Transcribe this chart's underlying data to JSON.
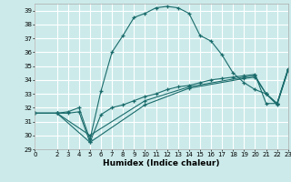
{
  "xlabel": "Humidex (Indice chaleur)",
  "bg_color": "#cceaea",
  "grid_color": "#ffffff",
  "line_color": "#1a6b6b",
  "marker": "+",
  "xlim": [
    0,
    23
  ],
  "ylim": [
    29,
    39.5
  ],
  "yticks": [
    29,
    30,
    31,
    32,
    33,
    34,
    35,
    36,
    37,
    38,
    39
  ],
  "xticks": [
    0,
    2,
    3,
    4,
    5,
    6,
    7,
    8,
    9,
    10,
    11,
    12,
    13,
    14,
    15,
    16,
    17,
    18,
    19,
    20,
    21,
    22,
    23
  ],
  "series": [
    {
      "x": [
        0,
        2,
        3,
        4,
        5,
        6,
        7,
        8,
        9,
        10,
        11,
        12,
        13,
        14,
        15,
        16,
        17,
        18,
        19,
        20,
        21,
        22,
        23
      ],
      "y": [
        31.6,
        31.6,
        31.7,
        32.0,
        29.7,
        33.2,
        36.0,
        37.2,
        38.5,
        38.8,
        39.2,
        39.3,
        39.2,
        38.8,
        37.2,
        36.8,
        35.8,
        34.5,
        33.8,
        33.3,
        33.0,
        32.3,
        34.8
      ]
    },
    {
      "x": [
        0,
        2,
        3,
        4,
        5,
        6,
        7,
        8,
        9,
        10,
        11,
        12,
        13,
        14,
        15,
        16,
        17,
        18,
        19,
        20,
        21,
        22,
        23
      ],
      "y": [
        31.6,
        31.6,
        31.6,
        31.7,
        29.5,
        31.5,
        32.0,
        32.2,
        32.5,
        32.8,
        33.0,
        33.3,
        33.5,
        33.6,
        33.8,
        34.0,
        34.1,
        34.2,
        34.3,
        34.4,
        32.3,
        32.3,
        34.7
      ]
    },
    {
      "x": [
        0,
        2,
        5,
        10,
        14,
        19,
        20,
        21,
        22,
        23
      ],
      "y": [
        31.6,
        31.6,
        30.0,
        32.5,
        33.5,
        34.2,
        34.3,
        33.0,
        32.3,
        34.8
      ]
    },
    {
      "x": [
        0,
        2,
        5,
        10,
        14,
        19,
        20,
        21,
        22,
        23
      ],
      "y": [
        31.6,
        31.6,
        29.5,
        32.2,
        33.4,
        34.1,
        34.2,
        33.0,
        32.2,
        34.7
      ]
    }
  ]
}
